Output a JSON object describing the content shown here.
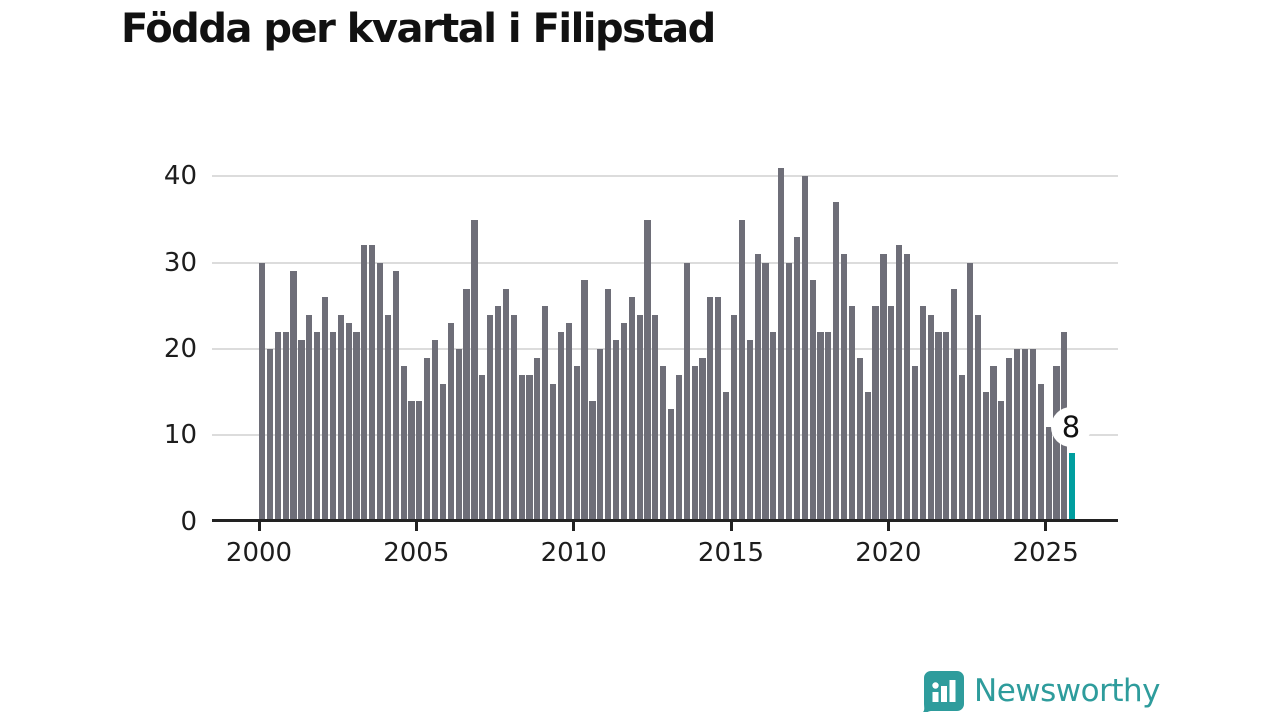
{
  "title": "Födda per kvartal i Filipstad",
  "chart_data": {
    "type": "bar",
    "title": "Födda per kvartal i Filipstad",
    "x_start": "2000-Q1",
    "x_end": "2025-Q4",
    "values": [
      30,
      20,
      22,
      22,
      29,
      21,
      24,
      22,
      26,
      22,
      24,
      23,
      22,
      32,
      32,
      30,
      24,
      29,
      18,
      14,
      14,
      19,
      21,
      16,
      23,
      20,
      27,
      35,
      17,
      24,
      25,
      27,
      24,
      17,
      17,
      19,
      25,
      16,
      22,
      23,
      18,
      28,
      14,
      20,
      27,
      21,
      23,
      26,
      24,
      35,
      24,
      18,
      13,
      17,
      30,
      18,
      19,
      26,
      26,
      15,
      24,
      35,
      21,
      31,
      30,
      22,
      41,
      30,
      33,
      40,
      28,
      22,
      22,
      37,
      31,
      25,
      19,
      15,
      25,
      31,
      25,
      32,
      31,
      18,
      25,
      24,
      22,
      22,
      27,
      17,
      30,
      24,
      15,
      18,
      14,
      19,
      20,
      20,
      20,
      16,
      11,
      18,
      22,
      8
    ],
    "highlight_index": 103,
    "highlight_value_label": "8",
    "x_tick_labels": [
      "2000",
      "2005",
      "2010",
      "2015",
      "2020",
      "2025"
    ],
    "y_tick_labels": [
      "0",
      "10",
      "20",
      "30",
      "40"
    ],
    "y_tick_values": [
      0,
      10,
      20,
      30,
      40
    ],
    "ylim": [
      0,
      42
    ],
    "grid": "horizontal",
    "bar_color": "#6e6e78",
    "highlight_color": "#009e9f",
    "axis_color": "#222222",
    "gridline_color": "#dcdcdc"
  },
  "footer": {
    "brand": "Newsworthy",
    "brand_color": "#2e9c9c"
  }
}
